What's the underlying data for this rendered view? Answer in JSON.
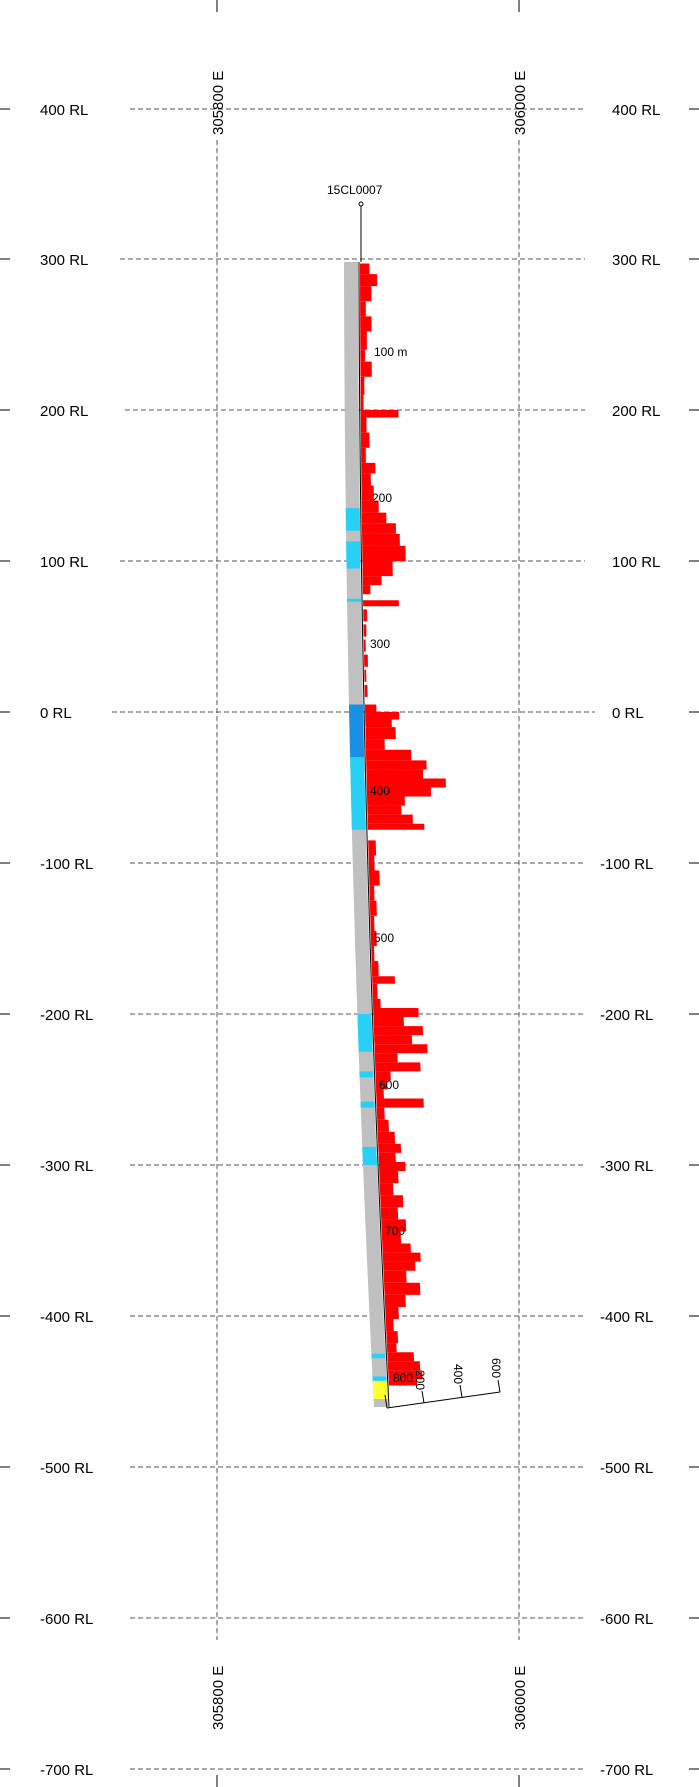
{
  "section": {
    "rl_labels": [
      "400 RL",
      "300 RL",
      "200 RL",
      "100 RL",
      "0 RL",
      "-100 RL",
      "-200 RL",
      "-300 RL",
      "-400 RL",
      "-500 RL",
      "-600 RL",
      "-700 RL"
    ],
    "easting_labels": [
      "305800 E",
      "306000 E"
    ],
    "hole_id": "15CL0007",
    "depth_labels": [
      "100 m",
      "200",
      "300",
      "400",
      "500",
      "600",
      "700",
      "800"
    ],
    "scale_labels": [
      "200",
      "400",
      "600"
    ]
  },
  "colors": {
    "grid": "#555555",
    "trace": "#c0c0c0",
    "histogram": "#ff0000",
    "interval_light_blue": "#29d0f5",
    "interval_blue": "#1a8fe6",
    "interval_yellow": "#ffff33"
  },
  "hole": {
    "collar_rl": 297,
    "end_rl": -455,
    "intervals": [
      {
        "from_rl": 135,
        "to_rl": 120,
        "color": "light_blue"
      },
      {
        "from_rl": 113,
        "to_rl": 95,
        "color": "light_blue"
      },
      {
        "from_rl": 75,
        "to_rl": 73,
        "color": "light_blue"
      },
      {
        "from_rl": 5,
        "to_rl": -30,
        "color": "blue"
      },
      {
        "from_rl": -30,
        "to_rl": -78,
        "color": "light_blue"
      },
      {
        "from_rl": -200,
        "to_rl": -225,
        "color": "light_blue"
      },
      {
        "from_rl": -238,
        "to_rl": -242,
        "color": "light_blue"
      },
      {
        "from_rl": -258,
        "to_rl": -262,
        "color": "light_blue"
      },
      {
        "from_rl": -288,
        "to_rl": -300,
        "color": "light_blue"
      },
      {
        "from_rl": -425,
        "to_rl": -428,
        "color": "light_blue"
      },
      {
        "from_rl": -440,
        "to_rl": -444,
        "color": "light_blue"
      },
      {
        "from_rl": -443,
        "to_rl": -455,
        "color": "yellow"
      }
    ],
    "histogram": [
      {
        "from_rl": 297,
        "to_rl": 290,
        "value": 50
      },
      {
        "from_rl": 290,
        "to_rl": 282,
        "value": 90
      },
      {
        "from_rl": 282,
        "to_rl": 272,
        "value": 60
      },
      {
        "from_rl": 272,
        "to_rl": 262,
        "value": 30
      },
      {
        "from_rl": 262,
        "to_rl": 252,
        "value": 60
      },
      {
        "from_rl": 252,
        "to_rl": 240,
        "value": 35
      },
      {
        "from_rl": 240,
        "to_rl": 232,
        "value": 25
      },
      {
        "from_rl": 232,
        "to_rl": 222,
        "value": 60
      },
      {
        "from_rl": 222,
        "to_rl": 210,
        "value": 20
      },
      {
        "from_rl": 210,
        "to_rl": 200,
        "value": 15
      },
      {
        "from_rl": 200,
        "to_rl": 195,
        "value": 200
      },
      {
        "from_rl": 195,
        "to_rl": 185,
        "value": 30
      },
      {
        "from_rl": 185,
        "to_rl": 175,
        "value": 45
      },
      {
        "from_rl": 175,
        "to_rl": 165,
        "value": 25
      },
      {
        "from_rl": 165,
        "to_rl": 158,
        "value": 75
      },
      {
        "from_rl": 158,
        "to_rl": 150,
        "value": 50
      },
      {
        "from_rl": 150,
        "to_rl": 140,
        "value": 65
      },
      {
        "from_rl": 140,
        "to_rl": 132,
        "value": 90
      },
      {
        "from_rl": 132,
        "to_rl": 125,
        "value": 130
      },
      {
        "from_rl": 125,
        "to_rl": 118,
        "value": 180
      },
      {
        "from_rl": 118,
        "to_rl": 110,
        "value": 200
      },
      {
        "from_rl": 110,
        "to_rl": 100,
        "value": 230
      },
      {
        "from_rl": 100,
        "to_rl": 90,
        "value": 160
      },
      {
        "from_rl": 90,
        "to_rl": 84,
        "value": 100
      },
      {
        "from_rl": 84,
        "to_rl": 78,
        "value": 40
      },
      {
        "from_rl": 74,
        "to_rl": 70,
        "value": 190
      },
      {
        "from_rl": 68,
        "to_rl": 60,
        "value": 20
      },
      {
        "from_rl": 58,
        "to_rl": 50,
        "value": 15
      },
      {
        "from_rl": 48,
        "to_rl": 40,
        "value": 10
      },
      {
        "from_rl": 38,
        "to_rl": 30,
        "value": 20
      },
      {
        "from_rl": 28,
        "to_rl": 20,
        "value": 10
      },
      {
        "from_rl": 18,
        "to_rl": 10,
        "value": 15
      },
      {
        "from_rl": 5,
        "to_rl": 0,
        "value": 60
      },
      {
        "from_rl": 0,
        "to_rl": -5,
        "value": 180
      },
      {
        "from_rl": -5,
        "to_rl": -10,
        "value": 140
      },
      {
        "from_rl": -10,
        "to_rl": -18,
        "value": 160
      },
      {
        "from_rl": -18,
        "to_rl": -25,
        "value": 100
      },
      {
        "from_rl": -25,
        "to_rl": -32,
        "value": 240
      },
      {
        "from_rl": -32,
        "to_rl": -38,
        "value": 320
      },
      {
        "from_rl": -38,
        "to_rl": -44,
        "value": 300
      },
      {
        "from_rl": -44,
        "to_rl": -50,
        "value": 420
      },
      {
        "from_rl": -50,
        "to_rl": -56,
        "value": 340
      },
      {
        "from_rl": -56,
        "to_rl": -62,
        "value": 200
      },
      {
        "from_rl": -62,
        "to_rl": -68,
        "value": 180
      },
      {
        "from_rl": -68,
        "to_rl": -74,
        "value": 240
      },
      {
        "from_rl": -74,
        "to_rl": -78,
        "value": 300
      },
      {
        "from_rl": -85,
        "to_rl": -95,
        "value": 40
      },
      {
        "from_rl": -95,
        "to_rl": -105,
        "value": 30
      },
      {
        "from_rl": -105,
        "to_rl": -115,
        "value": 55
      },
      {
        "from_rl": -115,
        "to_rl": -125,
        "value": 25
      },
      {
        "from_rl": -125,
        "to_rl": -135,
        "value": 35
      },
      {
        "from_rl": -135,
        "to_rl": -145,
        "value": 20
      },
      {
        "from_rl": -145,
        "to_rl": -155,
        "value": 30
      },
      {
        "from_rl": -155,
        "to_rl": -165,
        "value": 15
      },
      {
        "from_rl": -165,
        "to_rl": -175,
        "value": 35
      },
      {
        "from_rl": -175,
        "to_rl": -180,
        "value": 120
      },
      {
        "from_rl": -180,
        "to_rl": -190,
        "value": 25
      },
      {
        "from_rl": -190,
        "to_rl": -196,
        "value": 40
      },
      {
        "from_rl": -196,
        "to_rl": -202,
        "value": 240
      },
      {
        "from_rl": -202,
        "to_rl": -208,
        "value": 160
      },
      {
        "from_rl": -208,
        "to_rl": -214,
        "value": 260
      },
      {
        "from_rl": -214,
        "to_rl": -220,
        "value": 200
      },
      {
        "from_rl": -220,
        "to_rl": -226,
        "value": 280
      },
      {
        "from_rl": -226,
        "to_rl": -232,
        "value": 120
      },
      {
        "from_rl": -232,
        "to_rl": -238,
        "value": 240
      },
      {
        "from_rl": -238,
        "to_rl": -244,
        "value": 80
      },
      {
        "from_rl": -244,
        "to_rl": -250,
        "value": 60
      },
      {
        "from_rl": -250,
        "to_rl": -256,
        "value": 40
      },
      {
        "from_rl": -256,
        "to_rl": -262,
        "value": 250
      },
      {
        "from_rl": -262,
        "to_rl": -270,
        "value": 40
      },
      {
        "from_rl": -270,
        "to_rl": -278,
        "value": 60
      },
      {
        "from_rl": -278,
        "to_rl": -286,
        "value": 90
      },
      {
        "from_rl": -286,
        "to_rl": -292,
        "value": 120
      },
      {
        "from_rl": -292,
        "to_rl": -298,
        "value": 90
      },
      {
        "from_rl": -298,
        "to_rl": -304,
        "value": 140
      },
      {
        "from_rl": -304,
        "to_rl": -312,
        "value": 100
      },
      {
        "from_rl": -312,
        "to_rl": -320,
        "value": 70
      },
      {
        "from_rl": -320,
        "to_rl": -328,
        "value": 120
      },
      {
        "from_rl": -328,
        "to_rl": -336,
        "value": 90
      },
      {
        "from_rl": -336,
        "to_rl": -344,
        "value": 130
      },
      {
        "from_rl": -344,
        "to_rl": -352,
        "value": 100
      },
      {
        "from_rl": -352,
        "to_rl": -358,
        "value": 150
      },
      {
        "from_rl": -358,
        "to_rl": -364,
        "value": 200
      },
      {
        "from_rl": -364,
        "to_rl": -370,
        "value": 170
      },
      {
        "from_rl": -370,
        "to_rl": -378,
        "value": 120
      },
      {
        "from_rl": -378,
        "to_rl": -386,
        "value": 190
      },
      {
        "from_rl": -386,
        "to_rl": -394,
        "value": 110
      },
      {
        "from_rl": -394,
        "to_rl": -402,
        "value": 70
      },
      {
        "from_rl": -402,
        "to_rl": -410,
        "value": 40
      },
      {
        "from_rl": -410,
        "to_rl": -418,
        "value": 60
      },
      {
        "from_rl": -418,
        "to_rl": -424,
        "value": 50
      },
      {
        "from_rl": -424,
        "to_rl": -430,
        "value": 140
      },
      {
        "from_rl": -430,
        "to_rl": -436,
        "value": 170
      },
      {
        "from_rl": -436,
        "to_rl": -442,
        "value": 180
      },
      {
        "from_rl": -442,
        "to_rl": -446,
        "value": 150
      }
    ]
  }
}
